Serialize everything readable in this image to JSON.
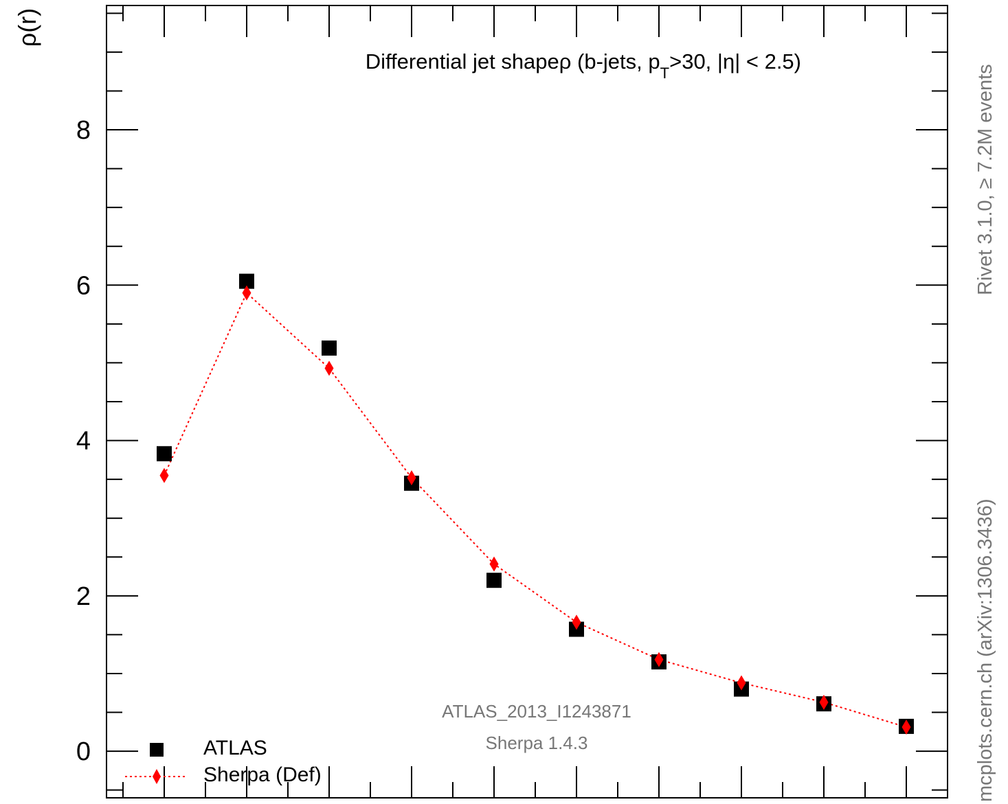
{
  "chart_data": {
    "type": "scatter",
    "title": "Differential jet shape",
    "title_symbol": "ρ",
    "title_cuts_prefix": " (b-jets, p",
    "title_cuts_sub": "T",
    "title_cuts_suffix": ">30, |η| < 2.5)",
    "ylabel": "ρ(r)",
    "xlabel": "",
    "ylim": [
      -0.6,
      9.6
    ],
    "xlim": [
      0,
      10.2
    ],
    "yticks_major": [
      0,
      2,
      4,
      6,
      8
    ],
    "ytick_labels": [
      "0",
      "2",
      "4",
      "6",
      "8"
    ],
    "grid": false,
    "legend_position": "bottom-left",
    "legend": [
      {
        "label": "ATLAS",
        "marker": "square",
        "color": "#000000"
      },
      {
        "label": "Sherpa (Def)",
        "marker": "diamond",
        "color": "#ff0000",
        "line": "dotted"
      }
    ],
    "analysis_label": "ATLAS_2013_I1243871",
    "generator_label": "Sherpa 1.4.3",
    "side_label_top": "Rivet 3.1.0, ≥ 7.2M events",
    "side_label_bottom": "mcplots.cern.ch (arXiv:1306.3436)",
    "series": [
      {
        "name": "ATLAS",
        "color": "#000000",
        "x": [
          0.7,
          1.7,
          2.7,
          3.7,
          4.7,
          5.7,
          6.7,
          7.7,
          8.7,
          9.7
        ],
        "y": [
          3.83,
          6.05,
          5.19,
          3.45,
          2.2,
          1.57,
          1.15,
          0.8,
          0.61,
          0.32
        ]
      },
      {
        "name": "Sherpa (Def)",
        "color": "#ff0000",
        "x": [
          0.7,
          1.7,
          2.7,
          3.7,
          4.7,
          5.7,
          6.7,
          7.7,
          8.7,
          9.7
        ],
        "y": [
          3.55,
          5.9,
          4.93,
          3.52,
          2.41,
          1.66,
          1.18,
          0.88,
          0.63,
          0.31
        ]
      }
    ]
  }
}
